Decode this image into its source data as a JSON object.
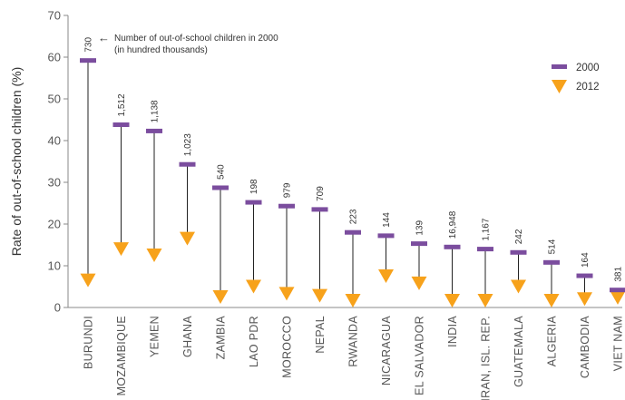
{
  "chart_data": {
    "type": "scatter",
    "ylabel": "Rate of out-of-school children (%)",
    "ylim": [
      0,
      70
    ],
    "yticks": [
      0,
      10,
      20,
      30,
      40,
      50,
      60,
      70
    ],
    "grid": false,
    "legend_position": "top-right",
    "annotation": {
      "arrow": "←",
      "line1": "Number of out-of-school children in 2000",
      "line2": "(in hundred thousands)"
    },
    "colors": {
      "2000": "#7b4d9e",
      "2012": "#f7a21b",
      "axis": "#888888"
    },
    "categories": [
      "BURUNDI",
      "MOZAMBIQUE",
      "YEMEN",
      "GHANA",
      "ZAMBIA",
      "LAO PDR",
      "MOROCCO",
      "NEPAL",
      "RWANDA",
      "NICARAGUA",
      "EL SALVADOR",
      "INDIA",
      "IRAN, ISL. REP.",
      "GUATEMALA",
      "ALGERIA",
      "CAMBODIA",
      "VIET NAM"
    ],
    "counts_2000": [
      "730",
      "1,512",
      "1,138",
      "1,023",
      "540",
      "198",
      "979",
      "709",
      "223",
      "144",
      "139",
      "16,948",
      "1,167",
      "242",
      "514",
      "164",
      "381"
    ],
    "series": [
      {
        "name": "2000",
        "marker": "bar",
        "values": [
          59.2,
          43.8,
          42.3,
          34.3,
          28.7,
          25.2,
          24.3,
          23.5,
          18.0,
          17.2,
          15.3,
          14.5,
          14.0,
          13.2,
          10.8,
          7.6,
          4.2
        ]
      },
      {
        "name": "2012",
        "marker": "triangle-down",
        "values": [
          6.5,
          14.0,
          12.5,
          16.5,
          2.5,
          5.0,
          3.3,
          2.8,
          1.5,
          7.5,
          5.8,
          1.5,
          0.7,
          5.0,
          1.5,
          2.0,
          2.3
        ]
      }
    ]
  }
}
